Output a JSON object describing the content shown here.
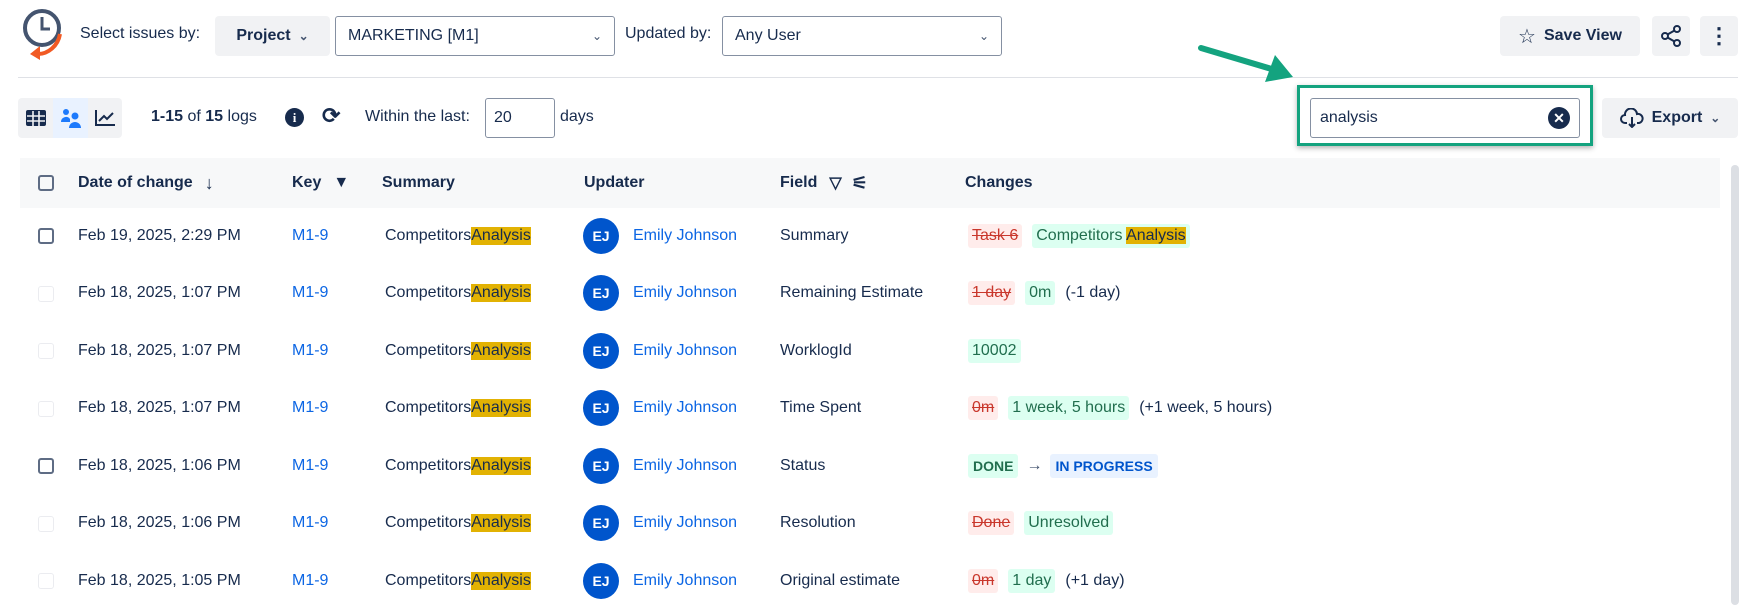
{
  "toolbar": {
    "select_label": "Select issues by:",
    "select_by": "Project",
    "project": "MARKETING [M1]",
    "updated_by_label": "Updated by:",
    "updated_by": "Any User",
    "save_view": "Save View"
  },
  "subbar": {
    "range": "1-15",
    "of": "of",
    "total": "15",
    "unit": "logs",
    "within_label": "Within the last:",
    "days_value": "20",
    "days_label": "days",
    "search_value": "analysis",
    "export": "Export"
  },
  "colors": {
    "accent": "#0c66e4",
    "highlight": "#e2b203",
    "annotation": "#14a37f"
  },
  "columns": [
    "Date of change",
    "Key",
    "Summary",
    "Updater",
    "Field",
    "Changes"
  ],
  "rows": [
    {
      "date": "Feb 19, 2025, 2:29 PM",
      "key": "M1-9",
      "summary_pre": "Competitors ",
      "summary_hl": "Analysis",
      "initials": "EJ",
      "updater": "Emily Johnson",
      "field": "Summary",
      "old": "Task 6",
      "new_pre": "Competitors ",
      "new_hl": "Analysis",
      "diff": "",
      "checkbox": "enabled"
    },
    {
      "date": "Feb 18, 2025, 1:07 PM",
      "key": "M1-9",
      "summary_pre": "Competitors ",
      "summary_hl": "Analysis",
      "initials": "EJ",
      "updater": "Emily Johnson",
      "field": "Remaining Estimate",
      "old": "1 day",
      "new_pre": "0m",
      "new_hl": "",
      "diff": "(-1 day)",
      "checkbox": "disabled"
    },
    {
      "date": "Feb 18, 2025, 1:07 PM",
      "key": "M1-9",
      "summary_pre": "Competitors ",
      "summary_hl": "Analysis",
      "initials": "EJ",
      "updater": "Emily Johnson",
      "field": "WorklogId",
      "old": "",
      "new_pre": "10002",
      "new_hl": "",
      "diff": "",
      "checkbox": "disabled"
    },
    {
      "date": "Feb 18, 2025, 1:07 PM",
      "key": "M1-9",
      "summary_pre": "Competitors ",
      "summary_hl": "Analysis",
      "initials": "EJ",
      "updater": "Emily Johnson",
      "field": "Time Spent",
      "old": "0m",
      "new_pre": "1 week, 5 hours",
      "new_hl": "",
      "diff": "(+1 week, 5 hours)",
      "checkbox": "disabled"
    },
    {
      "date": "Feb 18, 2025, 1:06 PM",
      "key": "M1-9",
      "summary_pre": "Competitors ",
      "summary_hl": "Analysis",
      "initials": "EJ",
      "updater": "Emily Johnson",
      "field": "Status",
      "status_from": "DONE",
      "status_to": "IN PROGRESS",
      "checkbox": "enabled"
    },
    {
      "date": "Feb 18, 2025, 1:06 PM",
      "key": "M1-9",
      "summary_pre": "Competitors ",
      "summary_hl": "Analysis",
      "initials": "EJ",
      "updater": "Emily Johnson",
      "field": "Resolution",
      "old": "Done",
      "new_pre": "Unresolved",
      "new_hl": "",
      "diff": "",
      "checkbox": "disabled"
    },
    {
      "date": "Feb 18, 2025, 1:05 PM",
      "key": "M1-9",
      "summary_pre": "Competitors ",
      "summary_hl": "Analysis",
      "initials": "EJ",
      "updater": "Emily Johnson",
      "field": "Original estimate",
      "old": "0m",
      "new_pre": "1 day",
      "new_hl": "",
      "diff": "(+1 day)",
      "checkbox": "disabled"
    }
  ]
}
